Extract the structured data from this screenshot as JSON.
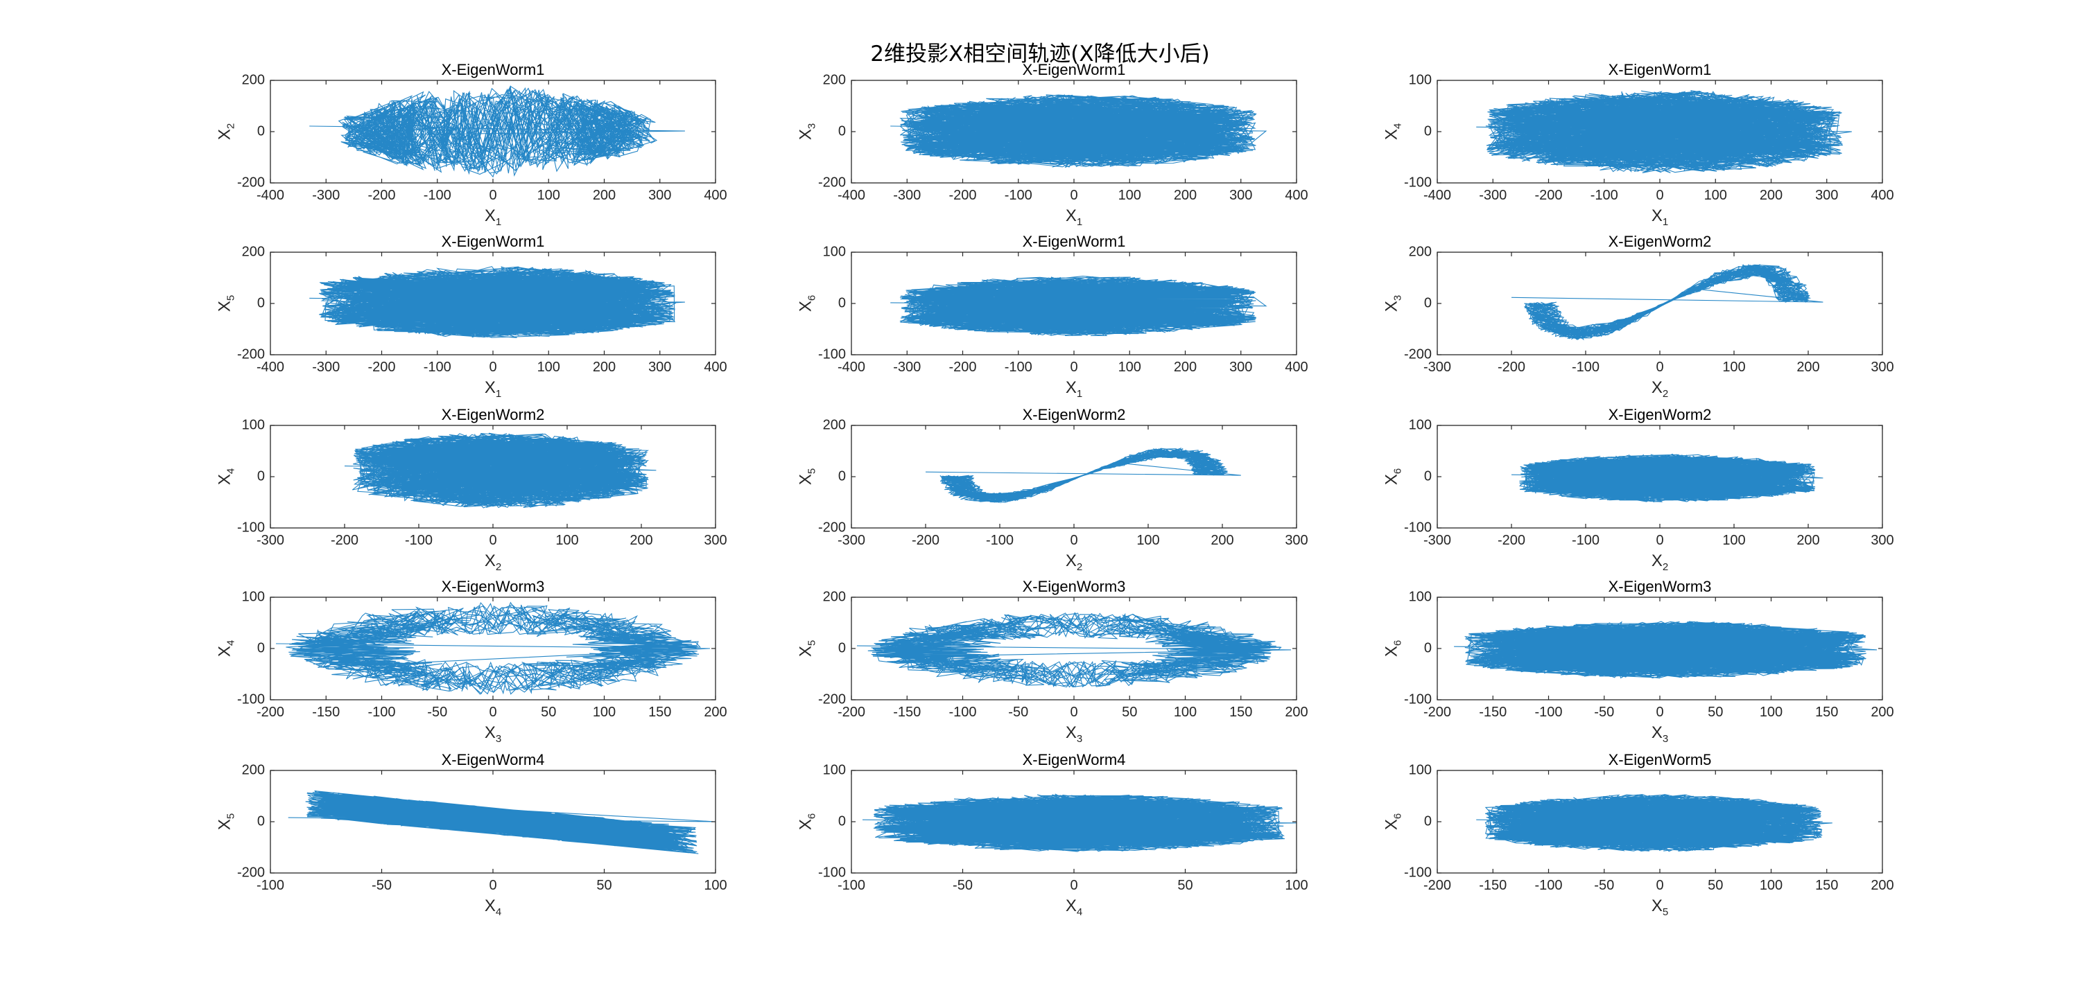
{
  "figure": {
    "title": "2维投影X相空间轨迹(X降低大小后)",
    "line_color": "#0072BD",
    "axes_color": "#262626"
  },
  "chart_data": [
    {
      "type": "line",
      "title": "X-EigenWorm1",
      "xlabel": "X",
      "xsub": "1",
      "ylabel": "X",
      "ysub": "2",
      "xlim": [
        -400,
        400
      ],
      "ylim": [
        -200,
        200
      ],
      "xticks": [
        -400,
        -300,
        -200,
        -100,
        0,
        100,
        200,
        300,
        400
      ],
      "yticks": [
        -200,
        0,
        200
      ],
      "trajectory": {
        "shape": "lens",
        "x_range": [
          -330,
          345
        ],
        "y_range": [
          -190,
          195
        ]
      }
    },
    {
      "type": "line",
      "title": "X-EigenWorm1",
      "xlabel": "X",
      "xsub": "1",
      "ylabel": "X",
      "ysub": "3",
      "xlim": [
        -400,
        400
      ],
      "ylim": [
        -200,
        200
      ],
      "xticks": [
        -400,
        -300,
        -200,
        -100,
        0,
        100,
        200,
        300,
        400
      ],
      "yticks": [
        -200,
        0,
        200
      ],
      "trajectory": {
        "shape": "band",
        "x_range": [
          -330,
          345
        ],
        "y_range": [
          -190,
          195
        ]
      }
    },
    {
      "type": "line",
      "title": "X-EigenWorm1",
      "xlabel": "X",
      "xsub": "1",
      "ylabel": "X",
      "ysub": "4",
      "xlim": [
        -400,
        400
      ],
      "ylim": [
        -100,
        100
      ],
      "xticks": [
        -400,
        -300,
        -200,
        -100,
        0,
        100,
        200,
        300,
        400
      ],
      "yticks": [
        -100,
        0,
        100
      ],
      "trajectory": {
        "shape": "cloud",
        "x_range": [
          -330,
          345
        ],
        "y_range": [
          -90,
          90
        ]
      }
    },
    {
      "type": "line",
      "title": "X-EigenWorm1",
      "xlabel": "X",
      "xsub": "1",
      "ylabel": "X",
      "ysub": "5",
      "xlim": [
        -400,
        400
      ],
      "ylim": [
        -200,
        200
      ],
      "xticks": [
        -400,
        -300,
        -200,
        -100,
        0,
        100,
        200,
        300,
        400
      ],
      "yticks": [
        -200,
        0,
        200
      ],
      "trajectory": {
        "shape": "cloud",
        "x_range": [
          -330,
          345
        ],
        "y_range": [
          -150,
          160
        ]
      }
    },
    {
      "type": "line",
      "title": "X-EigenWorm1",
      "xlabel": "X",
      "xsub": "1",
      "ylabel": "X",
      "ysub": "6",
      "xlim": [
        -400,
        400
      ],
      "ylim": [
        -100,
        100
      ],
      "xticks": [
        -400,
        -300,
        -200,
        -100,
        0,
        100,
        200,
        300,
        400
      ],
      "yticks": [
        -100,
        0,
        100
      ],
      "trajectory": {
        "shape": "cloud",
        "x_range": [
          -330,
          345
        ],
        "y_range": [
          -70,
          60
        ]
      }
    },
    {
      "type": "line",
      "title": "X-EigenWorm2",
      "xlabel": "X",
      "xsub": "2",
      "ylabel": "X",
      "ysub": "3",
      "xlim": [
        -300,
        300
      ],
      "ylim": [
        -200,
        200
      ],
      "xticks": [
        -300,
        -200,
        -100,
        0,
        100,
        200,
        300
      ],
      "yticks": [
        -200,
        0,
        200
      ],
      "trajectory": {
        "shape": "eight",
        "x_range": [
          -200,
          220
        ],
        "y_range": [
          -180,
          190
        ]
      }
    },
    {
      "type": "line",
      "title": "X-EigenWorm2",
      "xlabel": "X",
      "xsub": "2",
      "ylabel": "X",
      "ysub": "4",
      "xlim": [
        -300,
        300
      ],
      "ylim": [
        -100,
        100
      ],
      "xticks": [
        -300,
        -200,
        -100,
        0,
        100,
        200,
        300
      ],
      "yticks": [
        -100,
        0,
        100
      ],
      "trajectory": {
        "shape": "cloud",
        "x_range": [
          -200,
          220
        ],
        "y_range": [
          -70,
          95
        ]
      }
    },
    {
      "type": "line",
      "title": "X-EigenWorm2",
      "xlabel": "X",
      "xsub": "2",
      "ylabel": "X",
      "ysub": "5",
      "xlim": [
        -300,
        300
      ],
      "ylim": [
        -200,
        200
      ],
      "xticks": [
        -300,
        -200,
        -100,
        0,
        100,
        200,
        300
      ],
      "yticks": [
        -200,
        0,
        200
      ],
      "trajectory": {
        "shape": "eight",
        "x_range": [
          -200,
          225
        ],
        "y_range": [
          -130,
          140
        ]
      }
    },
    {
      "type": "line",
      "title": "X-EigenWorm2",
      "xlabel": "X",
      "xsub": "2",
      "ylabel": "X",
      "ysub": "6",
      "xlim": [
        -300,
        300
      ],
      "ylim": [
        -100,
        100
      ],
      "xticks": [
        -300,
        -200,
        -100,
        0,
        100,
        200,
        300
      ],
      "yticks": [
        -100,
        0,
        100
      ],
      "trajectory": {
        "shape": "band",
        "x_range": [
          -200,
          220
        ],
        "y_range": [
          -65,
          60
        ]
      }
    },
    {
      "type": "line",
      "title": "X-EigenWorm3",
      "xlabel": "X",
      "xsub": "3",
      "ylabel": "X",
      "ysub": "4",
      "xlim": [
        -200,
        200
      ],
      "ylim": [
        -100,
        100
      ],
      "xticks": [
        -200,
        -150,
        -100,
        -50,
        0,
        50,
        100,
        150,
        200
      ],
      "yticks": [
        -100,
        0,
        100
      ],
      "trajectory": {
        "shape": "ellipses",
        "x_range": [
          -195,
          195
        ],
        "y_range": [
          -95,
          95
        ]
      }
    },
    {
      "type": "line",
      "title": "X-EigenWorm3",
      "xlabel": "X",
      "xsub": "3",
      "ylabel": "X",
      "ysub": "5",
      "xlim": [
        -200,
        200
      ],
      "ylim": [
        -200,
        200
      ],
      "xticks": [
        -200,
        -150,
        -100,
        -50,
        0,
        50,
        100,
        150,
        200
      ],
      "yticks": [
        -200,
        0,
        200
      ],
      "trajectory": {
        "shape": "ellipses",
        "x_range": [
          -195,
          195
        ],
        "y_range": [
          -160,
          150
        ]
      }
    },
    {
      "type": "line",
      "title": "X-EigenWorm3",
      "xlabel": "X",
      "xsub": "3",
      "ylabel": "X",
      "ysub": "6",
      "xlim": [
        -200,
        200
      ],
      "ylim": [
        -100,
        100
      ],
      "xticks": [
        -200,
        -150,
        -100,
        -50,
        0,
        50,
        100,
        150,
        200
      ],
      "yticks": [
        -100,
        0,
        100
      ],
      "trajectory": {
        "shape": "cloud",
        "x_range": [
          -185,
          195
        ],
        "y_range": [
          -65,
          60
        ]
      }
    },
    {
      "type": "line",
      "title": "X-EigenWorm4",
      "xlabel": "X",
      "xsub": "4",
      "ylabel": "X",
      "ysub": "5",
      "xlim": [
        -100,
        100
      ],
      "ylim": [
        -200,
        200
      ],
      "xticks": [
        -100,
        -50,
        0,
        50,
        100
      ],
      "yticks": [
        -200,
        0,
        200
      ],
      "trajectory": {
        "shape": "tilted",
        "x_range": [
          -92,
          100
        ],
        "y_range": [
          -160,
          160
        ]
      }
    },
    {
      "type": "line",
      "title": "X-EigenWorm4",
      "xlabel": "X",
      "xsub": "4",
      "ylabel": "X",
      "ysub": "6",
      "xlim": [
        -100,
        100
      ],
      "ylim": [
        -100,
        100
      ],
      "xticks": [
        -100,
        -50,
        0,
        50,
        100
      ],
      "yticks": [
        -100,
        0,
        100
      ],
      "trajectory": {
        "shape": "cloud",
        "x_range": [
          -95,
          100
        ],
        "y_range": [
          -65,
          60
        ]
      }
    },
    {
      "type": "line",
      "title": "X-EigenWorm5",
      "xlabel": "X",
      "xsub": "5",
      "ylabel": "X",
      "ysub": "6",
      "xlim": [
        -200,
        200
      ],
      "ylim": [
        -100,
        100
      ],
      "xticks": [
        -200,
        -150,
        -100,
        -50,
        0,
        50,
        100,
        150,
        200
      ],
      "yticks": [
        -100,
        0,
        100
      ],
      "trajectory": {
        "shape": "cloud",
        "x_range": [
          -165,
          155
        ],
        "y_range": [
          -65,
          60
        ]
      }
    }
  ]
}
